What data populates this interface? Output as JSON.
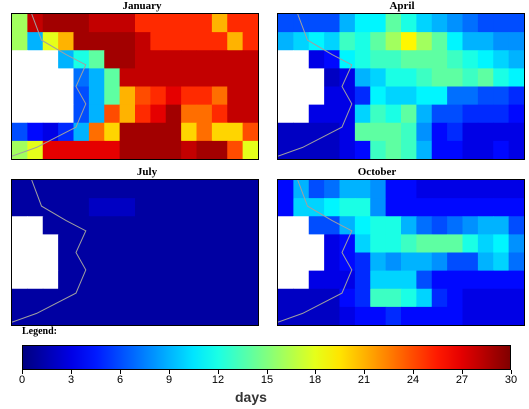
{
  "chart_data": {
    "type": "heatmap",
    "value_range": [
      0,
      30
    ],
    "colormap": "jet",
    "legend_title": "Legend:",
    "colorbar_ticks": [
      "0",
      "3",
      "6",
      "9",
      "12",
      "15",
      "18",
      "21",
      "24",
      "27",
      "30"
    ],
    "colorbar_unit": "days",
    "panels": [
      {
        "title": "January",
        "grid": [
          [
            16,
            28,
            29,
            29,
            29,
            28,
            28,
            28,
            25,
            25,
            25,
            25,
            25,
            21,
            25,
            25
          ],
          [
            16,
            9,
            18,
            21,
            29,
            29,
            29,
            29,
            28,
            25,
            25,
            25,
            25,
            25,
            21,
            25
          ],
          [
            null,
            null,
            null,
            9,
            12,
            14,
            29,
            29,
            28,
            28,
            28,
            28,
            28,
            28,
            28,
            28
          ],
          [
            null,
            null,
            null,
            null,
            7,
            9,
            14,
            28,
            28,
            28,
            28,
            28,
            28,
            28,
            28,
            28
          ],
          [
            null,
            null,
            null,
            null,
            6,
            9,
            14,
            21,
            24,
            25,
            27,
            25,
            25,
            23,
            28,
            28
          ],
          [
            null,
            null,
            null,
            null,
            6,
            9,
            24,
            21,
            25,
            27,
            29,
            23,
            23,
            25,
            28,
            28
          ],
          [
            6,
            4,
            3,
            5,
            9,
            23,
            20,
            29,
            29,
            29,
            29,
            20,
            23,
            20,
            20,
            24
          ],
          [
            16,
            18,
            27,
            27,
            27,
            27,
            27,
            29,
            29,
            29,
            29,
            28,
            29,
            29,
            24,
            18
          ]
        ]
      },
      {
        "title": "April",
        "grid": [
          [
            6,
            6,
            6,
            6,
            9,
            11,
            11,
            14,
            12,
            10,
            9,
            8,
            7,
            6,
            6,
            6
          ],
          [
            9,
            10,
            11,
            10,
            13,
            12,
            14,
            16,
            19,
            16,
            14,
            11,
            9,
            9,
            8,
            8
          ],
          [
            null,
            null,
            3,
            4,
            11,
            12,
            13,
            13,
            14,
            14,
            14,
            13,
            12,
            11,
            10,
            9
          ],
          [
            null,
            null,
            null,
            2,
            3,
            9,
            10,
            12,
            12,
            13,
            14,
            14,
            13,
            14,
            12,
            11
          ],
          [
            null,
            null,
            null,
            3,
            3,
            5,
            11,
            10,
            10,
            11,
            11,
            7,
            7,
            6,
            6,
            5
          ],
          [
            null,
            null,
            3,
            3,
            3,
            10,
            13,
            12,
            14,
            9,
            6,
            6,
            5,
            5,
            5,
            4
          ],
          [
            2,
            2,
            2,
            2,
            3,
            14,
            14,
            14,
            13,
            8,
            4,
            5,
            3,
            3,
            3,
            3
          ],
          [
            2,
            2,
            2,
            2,
            3,
            4,
            13,
            14,
            13,
            9,
            4,
            4,
            3,
            3,
            4,
            3
          ]
        ]
      },
      {
        "title": "July",
        "grid": [
          [
            1,
            1,
            1,
            1,
            1,
            1,
            1,
            1,
            1,
            1,
            1,
            1,
            1,
            1,
            1,
            1
          ],
          [
            1,
            1,
            1,
            1,
            1,
            2,
            2,
            2,
            1,
            1,
            1,
            1,
            1,
            1,
            1,
            1
          ],
          [
            null,
            null,
            1,
            1,
            1,
            1,
            1,
            1,
            1,
            1,
            1,
            1,
            1,
            1,
            1,
            1
          ],
          [
            null,
            null,
            null,
            1,
            1,
            1,
            1,
            1,
            1,
            1,
            1,
            1,
            1,
            1,
            1,
            1
          ],
          [
            null,
            null,
            null,
            1,
            1,
            1,
            1,
            1,
            1,
            1,
            1,
            1,
            1,
            1,
            1,
            1
          ],
          [
            null,
            null,
            null,
            1,
            1,
            1,
            1,
            1,
            1,
            1,
            1,
            1,
            1,
            1,
            1,
            1
          ],
          [
            1,
            1,
            1,
            1,
            1,
            1,
            1,
            1,
            1,
            1,
            1,
            1,
            1,
            1,
            1,
            1
          ],
          [
            1,
            1,
            1,
            1,
            1,
            1,
            1,
            1,
            1,
            1,
            1,
            1,
            1,
            1,
            1,
            1
          ]
        ]
      },
      {
        "title": "October",
        "grid": [
          [
            4,
            9,
            6,
            7,
            9,
            9,
            8,
            4,
            4,
            3,
            3,
            3,
            3,
            3,
            3,
            3
          ],
          [
            4,
            10,
            10,
            11,
            12,
            12,
            8,
            4,
            4,
            4,
            4,
            4,
            4,
            4,
            4,
            4
          ],
          [
            null,
            null,
            6,
            6,
            9,
            11,
            12,
            12,
            9,
            7,
            6,
            7,
            8,
            9,
            9,
            6
          ],
          [
            null,
            null,
            null,
            3,
            4,
            10,
            12,
            12,
            13,
            14,
            14,
            14,
            12,
            10,
            11,
            8
          ],
          [
            null,
            null,
            null,
            3,
            4,
            5,
            9,
            8,
            9,
            9,
            8,
            6,
            6,
            9,
            10,
            7
          ],
          [
            null,
            null,
            3,
            3,
            3,
            5,
            10,
            10,
            10,
            6,
            4,
            4,
            4,
            4,
            4,
            4
          ],
          [
            2,
            2,
            2,
            2,
            4,
            5,
            13,
            13,
            12,
            10,
            5,
            4,
            3,
            3,
            3,
            3
          ],
          [
            2,
            2,
            2,
            2,
            3,
            4,
            4,
            5,
            4,
            4,
            4,
            4,
            3,
            3,
            3,
            3
          ]
        ]
      }
    ]
  }
}
